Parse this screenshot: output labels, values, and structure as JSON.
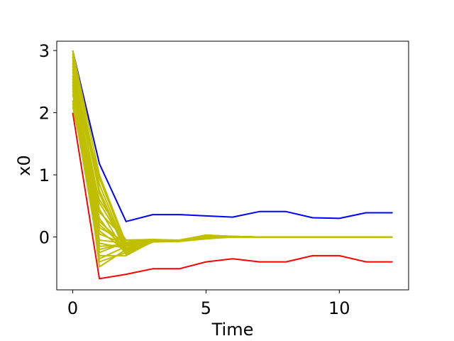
{
  "chart_data": {
    "type": "line",
    "xlabel": "Time",
    "ylabel": "x0",
    "xlim": [
      -0.6,
      12.6
    ],
    "ylim": [
      -0.85,
      3.15
    ],
    "xticks": [
      0,
      5,
      10
    ],
    "yticks": [
      0,
      1,
      2,
      3
    ],
    "grid": false,
    "x": [
      0,
      1,
      2,
      3,
      4,
      5,
      6,
      7,
      8,
      9,
      10,
      11,
      12
    ],
    "bounds": [
      {
        "color": "#0000ff",
        "values": [
          3.0,
          1.18,
          0.25,
          0.36,
          0.36,
          0.34,
          0.32,
          0.41,
          0.41,
          0.31,
          0.3,
          0.39,
          0.39
        ]
      },
      {
        "color": "#ff0000",
        "values": [
          2.0,
          -0.67,
          -0.6,
          -0.51,
          -0.51,
          -0.4,
          -0.35,
          -0.4,
          -0.4,
          -0.3,
          -0.3,
          -0.4,
          -0.4
        ]
      }
    ],
    "trajectories": {
      "color": "#bfbf00",
      "values": [
        [
          3.0,
          1.0,
          -0.1,
          -0.05,
          -0.05,
          0.02,
          0.01,
          0.0,
          0.0,
          0.0,
          0.0,
          0.0,
          0.0
        ],
        [
          2.9,
          0.85,
          -0.2,
          -0.06,
          -0.07,
          -0.01,
          0.0,
          0.0,
          0.0,
          0.0,
          0.0,
          0.0,
          0.0
        ],
        [
          2.8,
          0.7,
          -0.25,
          -0.07,
          -0.06,
          0.03,
          0.01,
          0.0,
          0.0,
          0.0,
          0.0,
          0.0,
          0.0
        ],
        [
          2.7,
          0.55,
          -0.15,
          -0.05,
          -0.05,
          -0.02,
          0.0,
          0.0,
          0.0,
          0.0,
          0.0,
          0.0,
          0.0
        ],
        [
          2.6,
          0.4,
          -0.05,
          -0.04,
          -0.06,
          0.02,
          0.01,
          0.0,
          0.0,
          0.0,
          0.0,
          0.0,
          0.0
        ],
        [
          2.5,
          0.3,
          -0.28,
          -0.08,
          -0.07,
          -0.03,
          0.0,
          0.0,
          0.0,
          0.0,
          0.0,
          0.0,
          0.0
        ],
        [
          2.4,
          0.2,
          -0.18,
          -0.05,
          -0.05,
          0.01,
          0.0,
          0.0,
          0.0,
          0.0,
          0.0,
          0.0,
          0.0
        ],
        [
          2.3,
          0.1,
          -0.22,
          -0.06,
          -0.06,
          -0.02,
          0.0,
          0.0,
          0.0,
          0.0,
          0.0,
          0.0,
          0.0
        ],
        [
          2.9,
          -0.05,
          -0.1,
          -0.05,
          -0.05,
          0.03,
          0.01,
          0.0,
          0.0,
          0.0,
          0.0,
          0.0,
          0.0
        ],
        [
          2.8,
          -0.15,
          -0.12,
          -0.06,
          -0.06,
          0.0,
          0.0,
          0.0,
          0.0,
          0.0,
          0.0,
          0.0,
          0.0
        ],
        [
          2.7,
          -0.25,
          -0.08,
          -0.05,
          -0.05,
          0.02,
          0.0,
          0.0,
          0.0,
          0.0,
          0.0,
          0.0,
          0.0
        ],
        [
          2.6,
          -0.35,
          -0.15,
          -0.06,
          -0.06,
          -0.01,
          0.0,
          0.0,
          0.0,
          0.0,
          0.0,
          0.0,
          0.0
        ],
        [
          2.95,
          -0.48,
          -0.2,
          -0.07,
          -0.06,
          0.01,
          0.0,
          0.0,
          0.0,
          0.0,
          0.0,
          0.0,
          0.0
        ],
        [
          2.5,
          -0.4,
          -0.25,
          -0.06,
          -0.05,
          -0.02,
          0.0,
          0.0,
          0.0,
          0.0,
          0.0,
          0.0,
          0.0
        ],
        [
          2.2,
          -0.3,
          -0.3,
          -0.07,
          -0.07,
          0.02,
          0.01,
          0.0,
          0.0,
          0.0,
          0.0,
          0.0,
          0.0
        ],
        [
          2.1,
          0.05,
          -0.12,
          -0.05,
          -0.06,
          0.0,
          0.0,
          0.0,
          0.0,
          0.0,
          0.0,
          0.0,
          0.0
        ],
        [
          2.35,
          0.6,
          -0.05,
          -0.04,
          -0.05,
          0.03,
          0.01,
          0.0,
          0.0,
          0.0,
          0.0,
          0.0,
          0.0
        ],
        [
          2.65,
          0.95,
          -0.15,
          -0.06,
          -0.06,
          -0.01,
          0.0,
          0.0,
          0.0,
          0.0,
          0.0,
          0.0,
          0.0
        ],
        [
          3.0,
          0.75,
          -0.22,
          -0.07,
          -0.06,
          0.02,
          0.01,
          0.0,
          0.0,
          0.0,
          0.0,
          0.0,
          0.0
        ],
        [
          2.75,
          0.15,
          -0.08,
          -0.05,
          -0.05,
          -0.02,
          0.0,
          0.0,
          0.0,
          0.0,
          0.0,
          0.0,
          0.0
        ],
        [
          2.55,
          -0.1,
          -0.18,
          -0.06,
          -0.07,
          0.01,
          0.0,
          0.0,
          0.0,
          0.0,
          0.0,
          0.0,
          0.0
        ],
        [
          2.85,
          0.45,
          -0.27,
          -0.07,
          -0.06,
          0.02,
          0.0,
          0.0,
          0.0,
          0.0,
          0.0,
          0.0,
          0.0
        ],
        [
          2.45,
          -0.2,
          -0.1,
          -0.05,
          -0.05,
          -0.01,
          0.0,
          0.0,
          0.0,
          0.0,
          0.0,
          0.0,
          0.0
        ],
        [
          2.15,
          0.25,
          -0.14,
          -0.06,
          -0.06,
          0.03,
          0.01,
          0.0,
          0.0,
          0.0,
          0.0,
          0.0,
          0.0
        ]
      ]
    }
  }
}
